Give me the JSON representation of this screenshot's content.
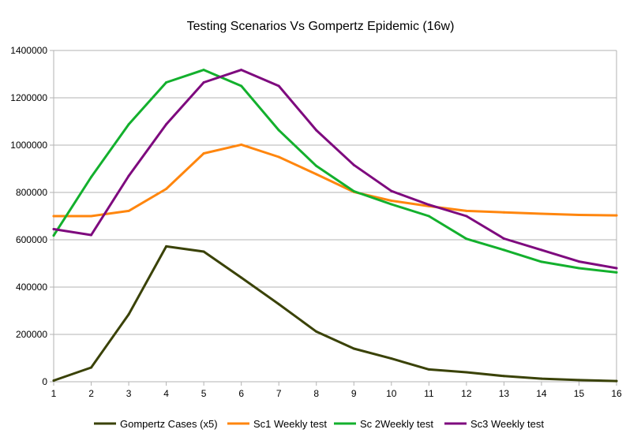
{
  "chart_data": {
    "type": "line",
    "title": "Testing Scenarios Vs Gompertz Epidemic (16w)",
    "xlabel": "",
    "ylabel": "",
    "x": [
      1,
      2,
      3,
      4,
      5,
      6,
      7,
      8,
      9,
      10,
      11,
      12,
      13,
      14,
      15,
      16
    ],
    "x_tick_labels": [
      "1",
      "2",
      "3",
      "4",
      "5",
      "6",
      "7",
      "8",
      "9",
      "10",
      "11",
      "12",
      "13",
      "14",
      "15",
      "16"
    ],
    "ylim": [
      0,
      1400000
    ],
    "y_ticks": [
      0,
      200000,
      400000,
      600000,
      800000,
      1000000,
      1200000,
      1400000
    ],
    "y_tick_labels": [
      "0",
      "200000",
      "400000",
      "600000",
      "800000",
      "1000000",
      "1200000",
      "1400000"
    ],
    "grid": "horizontal",
    "legend_position": "bottom",
    "series": [
      {
        "name": "Gompertz Cases (x5)",
        "color": "#3a4207",
        "values": [
          5000,
          60000,
          285000,
          572000,
          550000,
          440000,
          328000,
          212000,
          140000,
          98000,
          52000,
          40000,
          24000,
          13000,
          7000,
          3000
        ]
      },
      {
        "name": "Sc1 Weekly test",
        "color": "#ff860e",
        "values": [
          700000,
          700000,
          722000,
          815000,
          965000,
          1002000,
          950000,
          877000,
          802000,
          765000,
          742000,
          722000,
          716000,
          710000,
          705000,
          703000
        ]
      },
      {
        "name": "Sc 2Weekly test",
        "color": "#13b02d",
        "values": [
          618000,
          865000,
          1088000,
          1265000,
          1318000,
          1250000,
          1063000,
          912000,
          805000,
          750000,
          700000,
          604000,
          557000,
          507000,
          480000,
          462000
        ]
      },
      {
        "name": "Sc3 Weekly test",
        "color": "#7e0a7e",
        "values": [
          645000,
          620000,
          870000,
          1088000,
          1265000,
          1318000,
          1250000,
          1063000,
          916000,
          806000,
          748000,
          700000,
          605000,
          557000,
          508000,
          480000
        ]
      }
    ]
  }
}
